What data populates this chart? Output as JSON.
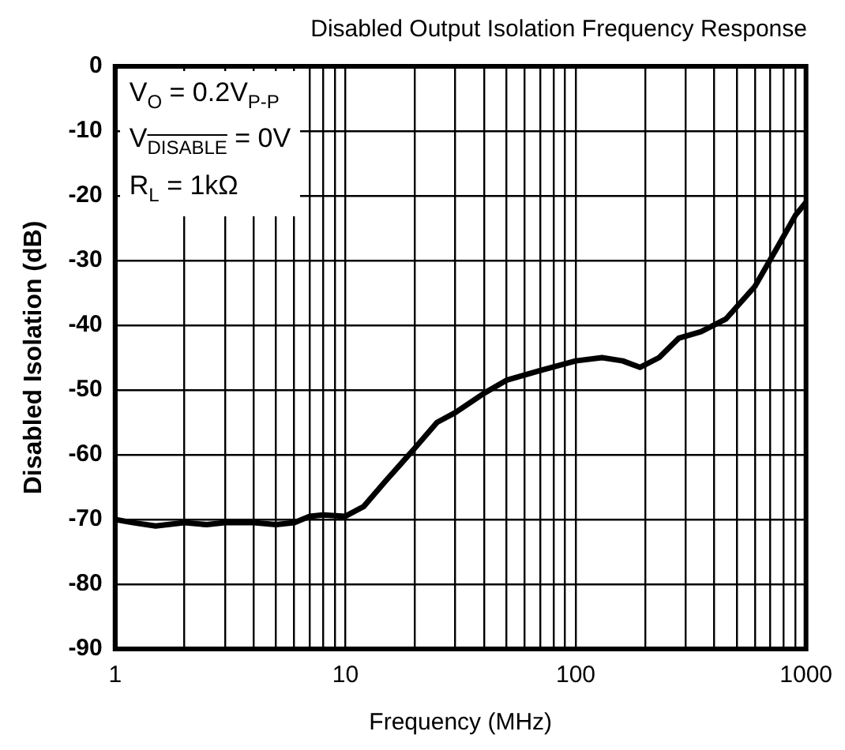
{
  "chart_data": {
    "type": "line",
    "title": "Disabled Output Isolation Frequency Response",
    "xlabel": "Frequency (MHz)",
    "ylabel": "Disabled Isolation (dB)",
    "annotations": [
      "V$_{O}$ = 0.2V$_{P-P}$",
      "V$_{DISABLE}$ = 0V",
      "R$_{L}$ = 1kΩ"
    ],
    "log": "x",
    "grid": true,
    "legend": false,
    "marker": "none",
    "line_style": "solid",
    "xlim": [
      1,
      1000
    ],
    "xticks": [
      1,
      {
        "value": 2,
        "label": null
      },
      {
        "value": 3,
        "label": null
      },
      {
        "value": 4,
        "label": null
      },
      {
        "value": 5,
        "label": null
      },
      {
        "value": 6,
        "label": null
      },
      {
        "value": 7,
        "label": null
      },
      {
        "value": 8,
        "label": null
      },
      {
        "value": 9,
        "label": null
      },
      10,
      {
        "value": 20,
        "label": null
      },
      {
        "value": 30,
        "label": null
      },
      {
        "value": 40,
        "label": null
      },
      {
        "value": 50,
        "label": null
      },
      {
        "value": 60,
        "label": null
      },
      {
        "value": 70,
        "label": null
      },
      {
        "value": 80,
        "label": null
      },
      {
        "value": 90,
        "label": null
      },
      100,
      {
        "value": 200,
        "label": null
      },
      {
        "value": 300,
        "label": null
      },
      {
        "value": 400,
        "label": null
      },
      {
        "value": 500,
        "label": null
      },
      {
        "value": 600,
        "label": null
      },
      {
        "value": 700,
        "label": null
      },
      {
        "value": 800,
        "label": null
      },
      {
        "value": 900,
        "label": null
      },
      1000
    ],
    "ylim": [
      -90,
      0
    ],
    "yticks": [
      -90,
      -80,
      -70,
      -60,
      -50,
      -40,
      -30,
      -20,
      -10,
      0
    ],
    "series": [
      {
        "color": "#000000",
        "x": [
          1,
          1.2,
          1.5,
          2,
          2.5,
          3,
          4,
          5,
          6,
          7,
          8,
          10,
          12,
          15,
          20,
          25,
          30,
          40,
          50,
          70,
          100,
          130,
          160,
          190,
          230,
          280,
          350,
          450,
          600,
          750,
          900,
          1000
        ],
        "values": [
          -70,
          -70.5,
          -71,
          -70.5,
          -70.8,
          -70.5,
          -70.5,
          -70.8,
          -70.5,
          -69.5,
          -69.3,
          -69.5,
          -68,
          -64,
          -59,
          -55,
          -53.5,
          -50.5,
          -48.5,
          -47,
          -45.5,
          -45,
          -45.5,
          -46.5,
          -45,
          -42,
          -41,
          -39,
          -34,
          -28,
          -23,
          -21
        ]
      }
    ]
  }
}
